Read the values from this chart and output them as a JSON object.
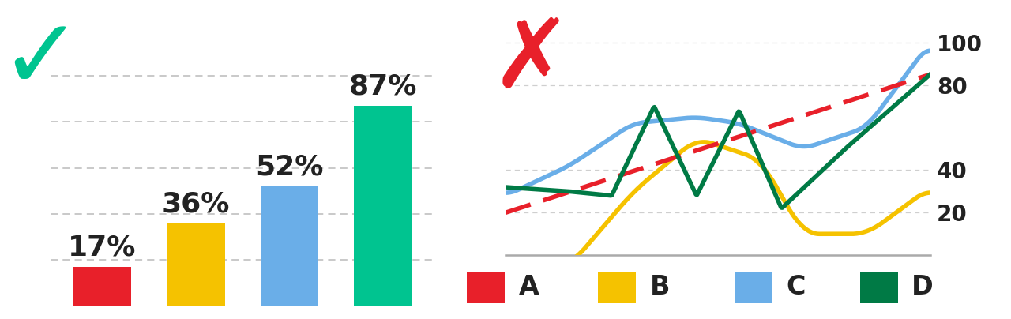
{
  "bar_values": [
    17,
    36,
    52,
    87
  ],
  "bar_colors": [
    "#e8202a",
    "#f5c200",
    "#6aaee8",
    "#00c490"
  ],
  "bar_labels": [
    "17%",
    "36%",
    "52%",
    "87%"
  ],
  "checkmark_color": "#00c490",
  "cross_color": "#e8202a",
  "grid_line_color": "#bbbbbb",
  "background_color": "#ffffff",
  "line_A_color": "#e8202a",
  "line_B_color": "#f5c200",
  "line_C_color": "#6aaee8",
  "line_D_color": "#007a45",
  "legend_labels": [
    "A",
    "B",
    "C",
    "D"
  ],
  "yticks_right": [
    20,
    40,
    80,
    100
  ],
  "axis_line_color": "#aaaaaa",
  "tick_fontsize": 20,
  "legend_fontsize": 24,
  "bar_label_fontsize": 26
}
